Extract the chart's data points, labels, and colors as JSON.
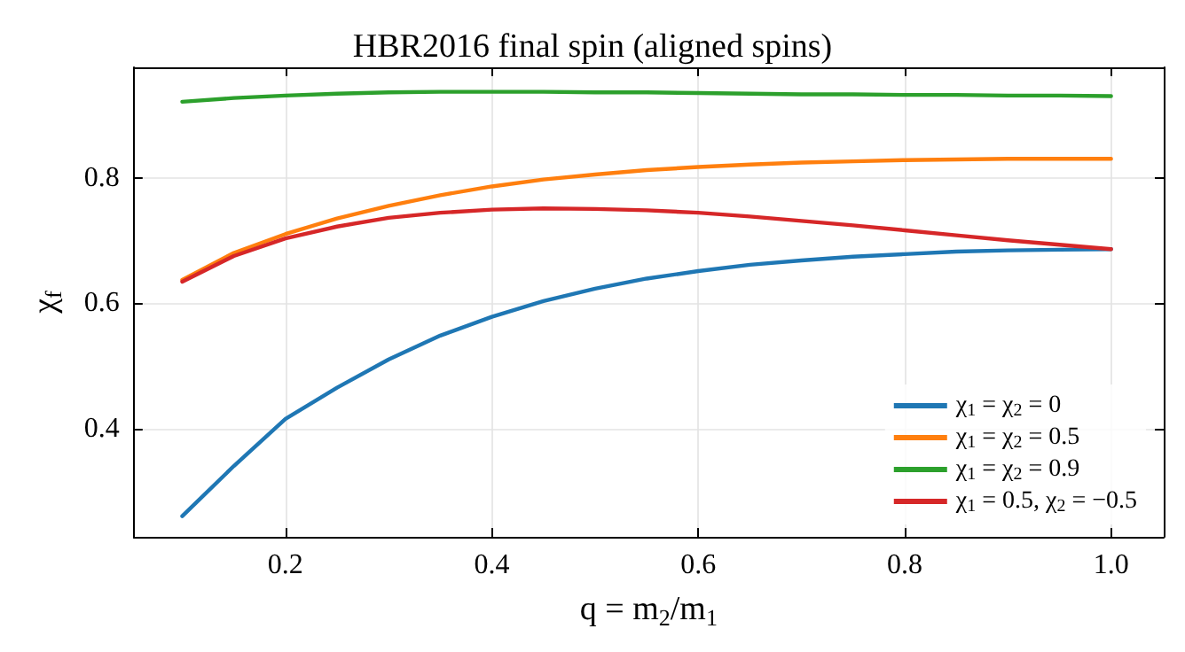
{
  "chart_data": {
    "type": "line",
    "title": "HBR2016 final spin (aligned spins)",
    "xlabel": "q = m$_{2}$/m$_{1}$",
    "ylabel": "χ$_{f}$",
    "x": [
      0.1,
      0.15,
      0.2,
      0.25,
      0.3,
      0.35,
      0.4,
      0.45,
      0.5,
      0.55,
      0.6,
      0.65,
      0.7,
      0.75,
      0.8,
      0.85,
      0.9,
      0.95,
      1.0
    ],
    "series": [
      {
        "name": "χ$_{1}$ = χ$_{2}$ = 0",
        "color": "#1f77b4",
        "values": [
          0.26,
          0.34,
          0.415,
          0.465,
          0.51,
          0.548,
          0.578,
          0.603,
          0.623,
          0.639,
          0.651,
          0.661,
          0.668,
          0.674,
          0.678,
          0.682,
          0.684,
          0.685,
          0.686
        ]
      },
      {
        "name": "χ$_{1}$ = χ$_{2}$ = 0.5",
        "color": "#ff7f0e",
        "values": [
          0.637,
          0.68,
          0.71,
          0.735,
          0.755,
          0.772,
          0.786,
          0.797,
          0.805,
          0.812,
          0.817,
          0.821,
          0.824,
          0.826,
          0.828,
          0.829,
          0.83,
          0.83,
          0.83
        ]
      },
      {
        "name": "χ$_{1}$ = χ$_{2}$ = 0.9",
        "color": "#2ca02c",
        "values": [
          0.921,
          0.927,
          0.931,
          0.934,
          0.936,
          0.937,
          0.937,
          0.937,
          0.936,
          0.936,
          0.935,
          0.934,
          0.933,
          0.933,
          0.932,
          0.932,
          0.931,
          0.931,
          0.93
        ]
      },
      {
        "name": "χ$_{1}$ = 0.5, χ$_{2}$ = −0.5",
        "color": "#d62728",
        "values": [
          0.634,
          0.675,
          0.703,
          0.722,
          0.736,
          0.744,
          0.749,
          0.751,
          0.75,
          0.748,
          0.744,
          0.738,
          0.731,
          0.724,
          0.716,
          0.708,
          0.7,
          0.693,
          0.686
        ]
      }
    ],
    "xlim": [
      0.053,
      1.051
    ],
    "ylim": [
      0.227,
      0.976
    ],
    "xticks": [
      0.2,
      0.4,
      0.6,
      0.8,
      {
        "value": 1,
        "label": "1.0"
      }
    ],
    "yticks": [
      0.4,
      0.6,
      0.8
    ],
    "grid": true,
    "legend": "bottom right",
    "marker": "none",
    "line_style": "solid"
  }
}
